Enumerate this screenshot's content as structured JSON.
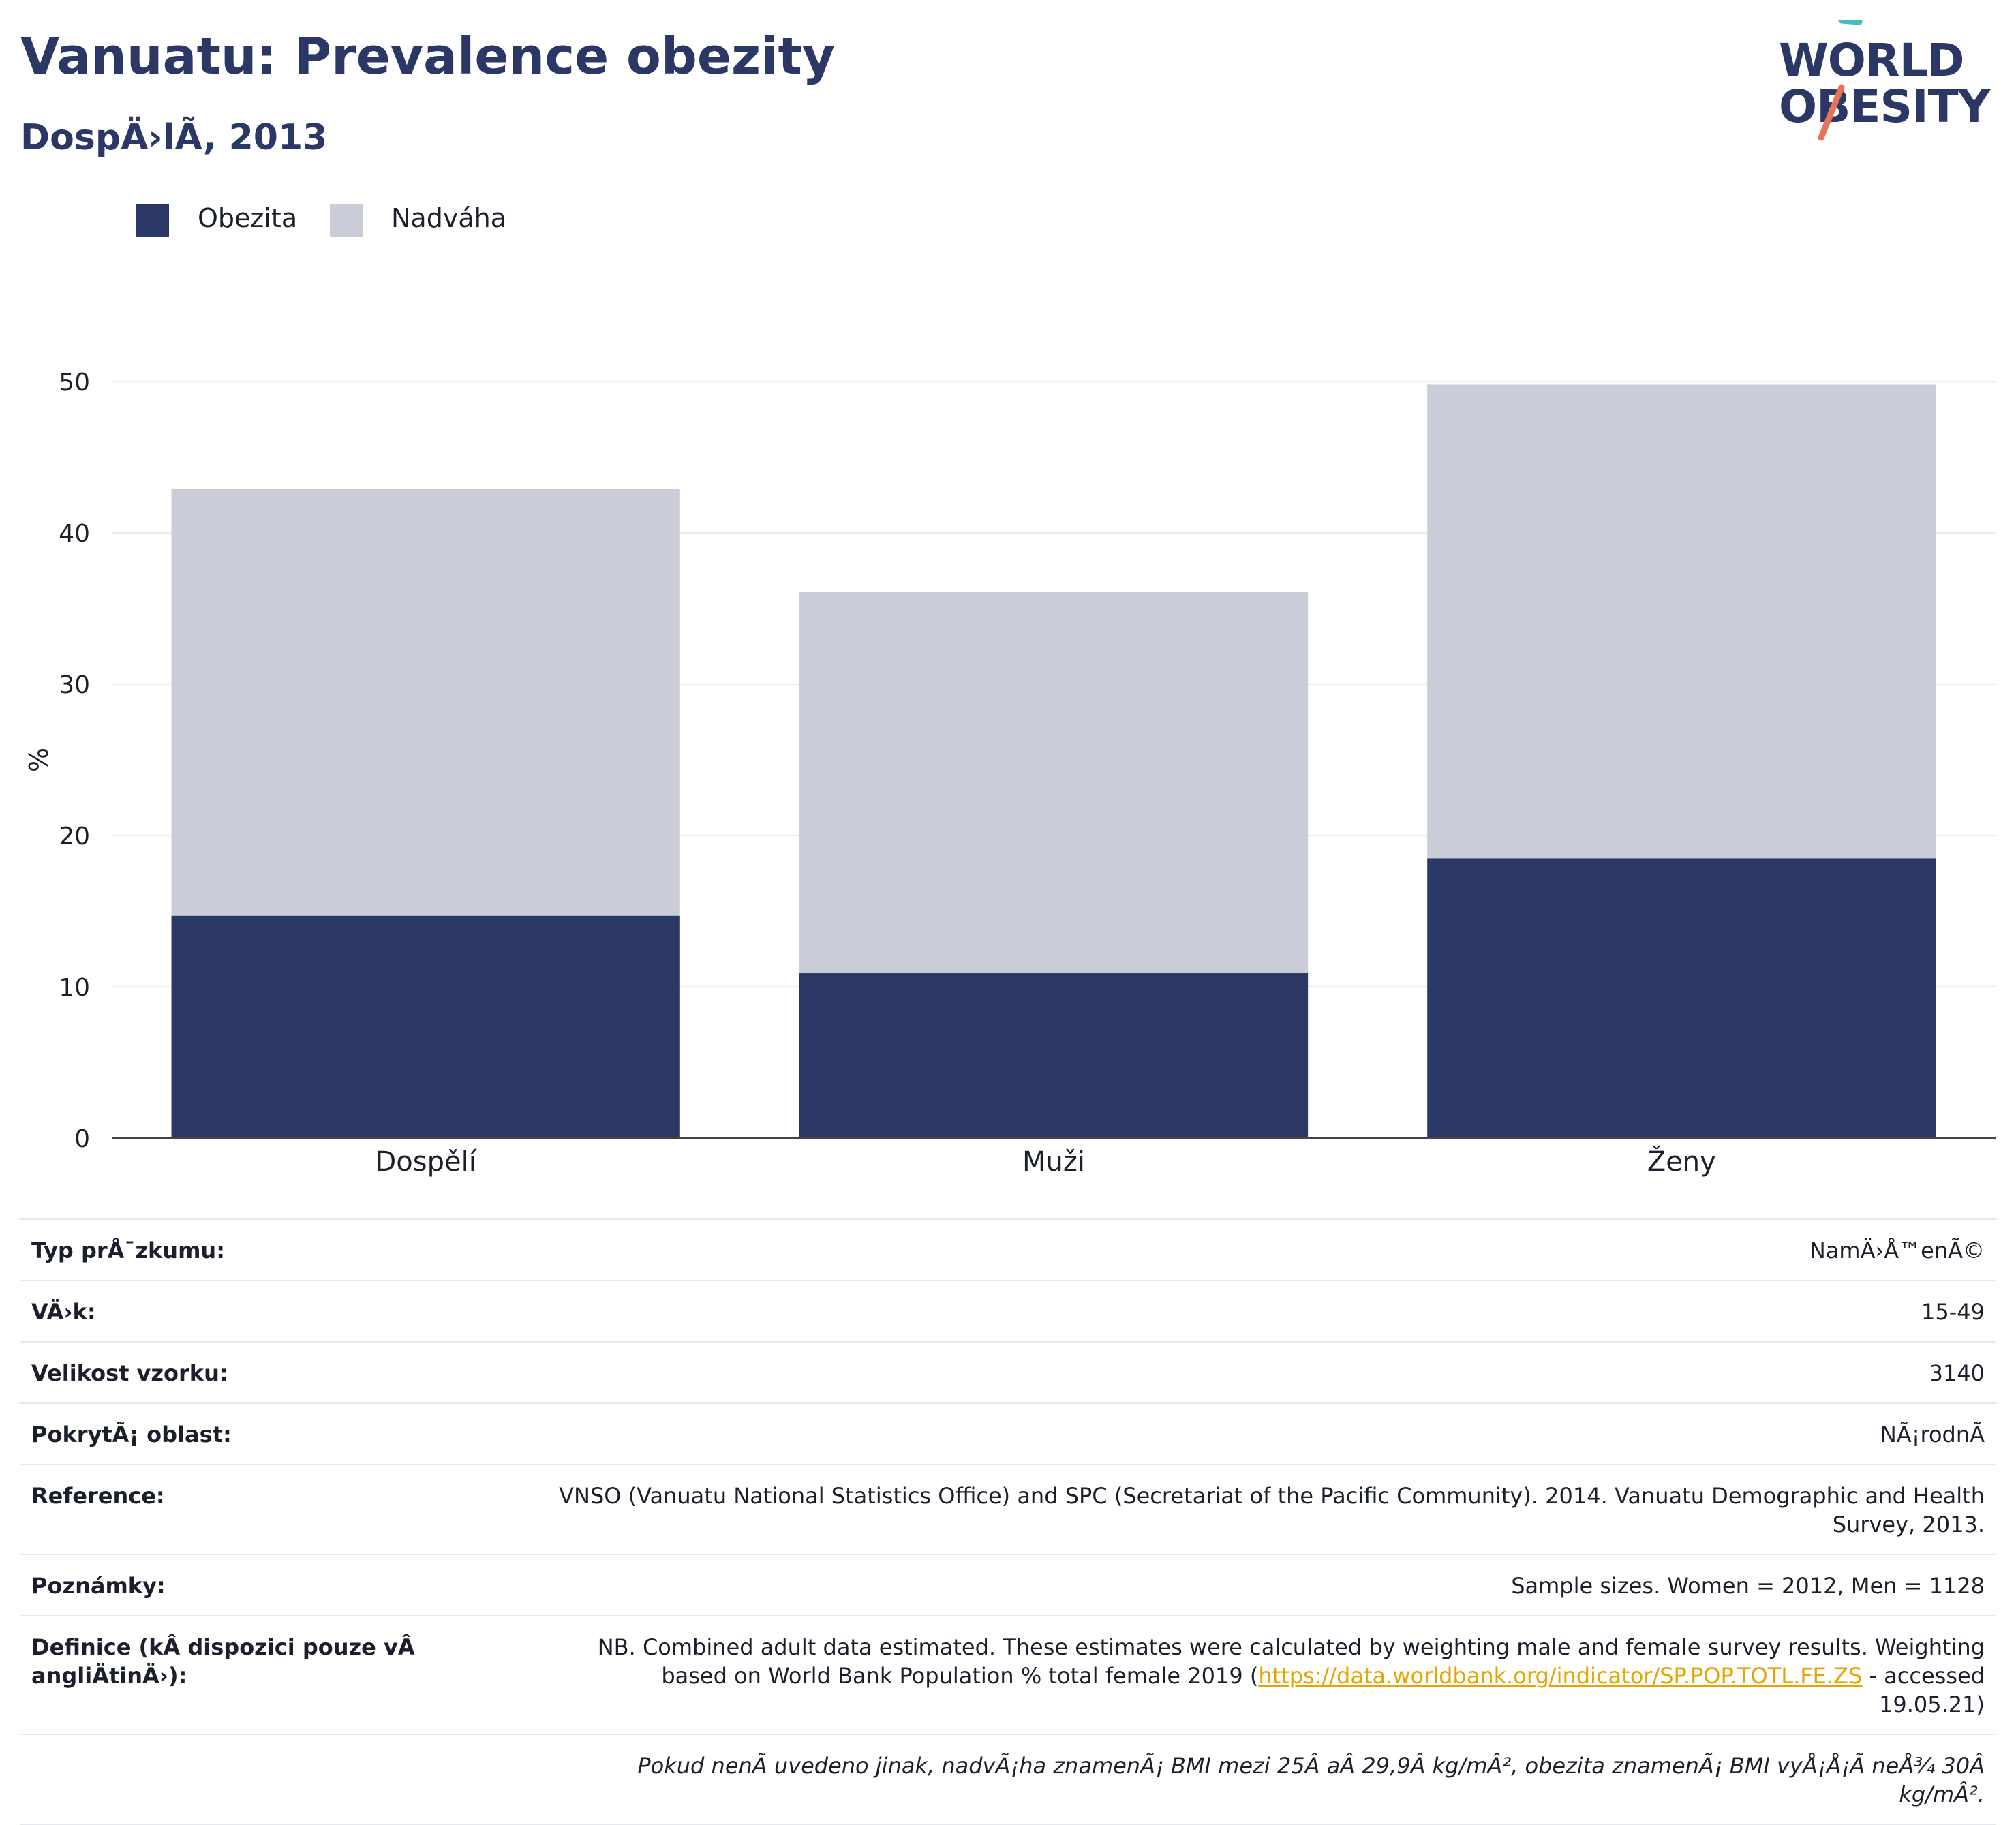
{
  "header": {
    "title": "Vanuatu: Prevalence obezity",
    "subtitle": "DospÄ›lÃ, 2013"
  },
  "logo": {
    "line1": "WORLD",
    "line2": "OBESITY"
  },
  "colors": {
    "obesity": "#2b3764",
    "overweight": "#cacdd8",
    "brand_teal": "#3fbfbf",
    "brand_coral": "#e8735a",
    "link": "#e5a500"
  },
  "chart_data": {
    "type": "bar",
    "stacked": true,
    "categories": [
      "Dospělí",
      "Muži",
      "Ženy"
    ],
    "series": [
      {
        "name": "Obezita",
        "values": [
          14.7,
          10.9,
          18.5
        ]
      },
      {
        "name": "Nadváha",
        "values": [
          28.2,
          25.2,
          31.3
        ]
      }
    ],
    "ylabel": "%",
    "ylim": [
      0,
      50
    ],
    "yticks": [
      0,
      10,
      20,
      30,
      40,
      50
    ],
    "grid": true,
    "legend": "top-left"
  },
  "info": {
    "rows": [
      {
        "label": "Typ prÅ¯zkumu:",
        "value": "NamÄ›Å™enÃ©"
      },
      {
        "label": "VÄ›k:",
        "value": "15-49"
      },
      {
        "label": "Velikost vzorku:",
        "value": "3140"
      },
      {
        "label": "PokrytÃ¡ oblast:",
        "value": "NÃ¡rodnÃ"
      },
      {
        "label": "Reference:",
        "value": "VNSO (Vanuatu National Statistics Office) and SPC (Secretariat of the Pacific Community). 2014. Vanuatu Demographic and Health Survey, 2013."
      },
      {
        "label": "Poznámky:",
        "value": "Sample sizes. Women = 2012, Men = 1128"
      }
    ],
    "definition": {
      "label": "Definice (kÂ dispozici pouze vÂ angliÄ\u001ftinÄ›):",
      "text_before": "NB. Combined adult data estimated. These estimates were calculated by weighting male and female survey results. Weighting based on World Bank Population % total female 2019 (",
      "link": "https://data.worldbank.org/indicator/SP.POP.TOTL.FE.ZS",
      "text_after": " - accessed 19.05.21)"
    },
    "footnote": "Pokud nenÃ uvedeno jinak, nadvÃ¡ha znamenÃ¡ BMI mezi 25Â aÂ 29,9Â kg/mÂ², obezita znamenÃ¡ BMI vyÅ¡Å¡Ã neÅ¾ 30Â kg/mÂ²."
  }
}
